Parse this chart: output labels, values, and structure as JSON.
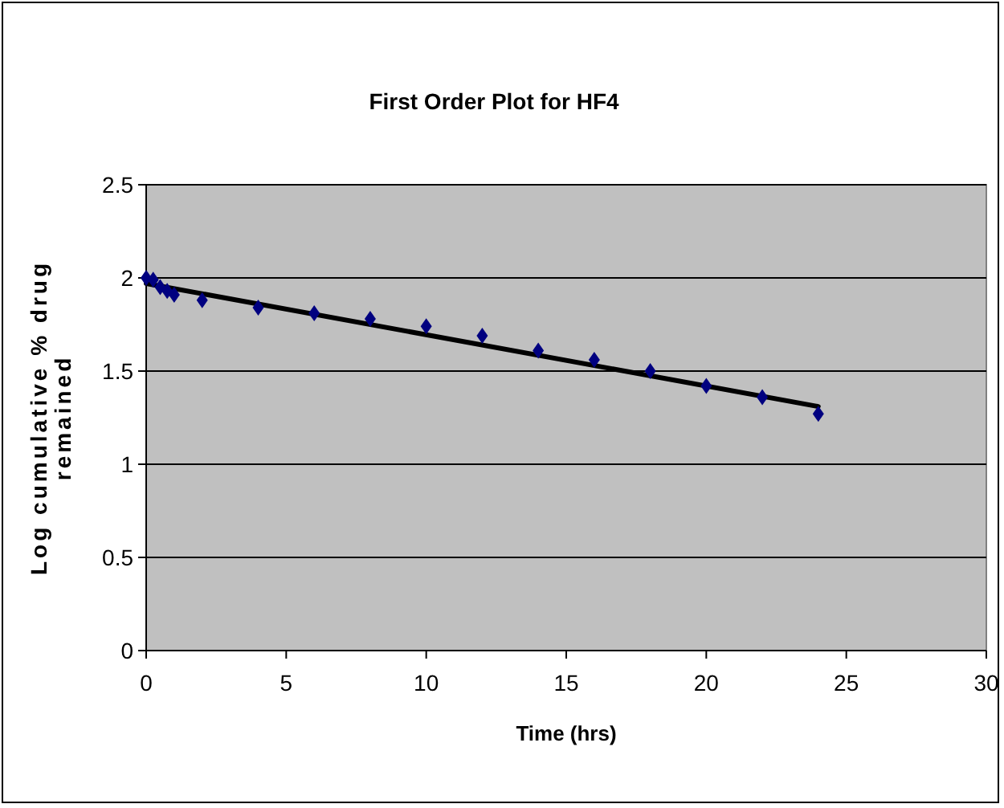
{
  "chart_data": {
    "type": "scatter",
    "title": "First Order Plot for HF4",
    "xlabel": "Time (hrs)",
    "ylabel": "Log cumulative % drug remained",
    "series": [
      {
        "color": "#000080",
        "marker": "diamond",
        "x": [
          0,
          0.25,
          0.5,
          0.75,
          1,
          2,
          4,
          6,
          8,
          10,
          12,
          14,
          16,
          18,
          20,
          22,
          24
        ],
        "values": [
          2.0,
          1.99,
          1.95,
          1.93,
          1.91,
          1.88,
          1.84,
          1.81,
          1.78,
          1.74,
          1.69,
          1.61,
          1.56,
          1.5,
          1.42,
          1.36,
          1.27
        ]
      },
      {
        "type": "line",
        "color": "#000000",
        "marker": "none",
        "line_style": "solid",
        "x": [
          0,
          24
        ],
        "values": [
          1.97,
          1.31
        ]
      }
    ],
    "xlim": [
      0,
      30
    ],
    "xticks": [
      0,
      5,
      10,
      15,
      20,
      25,
      30
    ],
    "ylim": [
      0,
      2.5
    ],
    "yticks": [
      0,
      0.5,
      1,
      1.5,
      2,
      2.5
    ],
    "grid": "y"
  }
}
